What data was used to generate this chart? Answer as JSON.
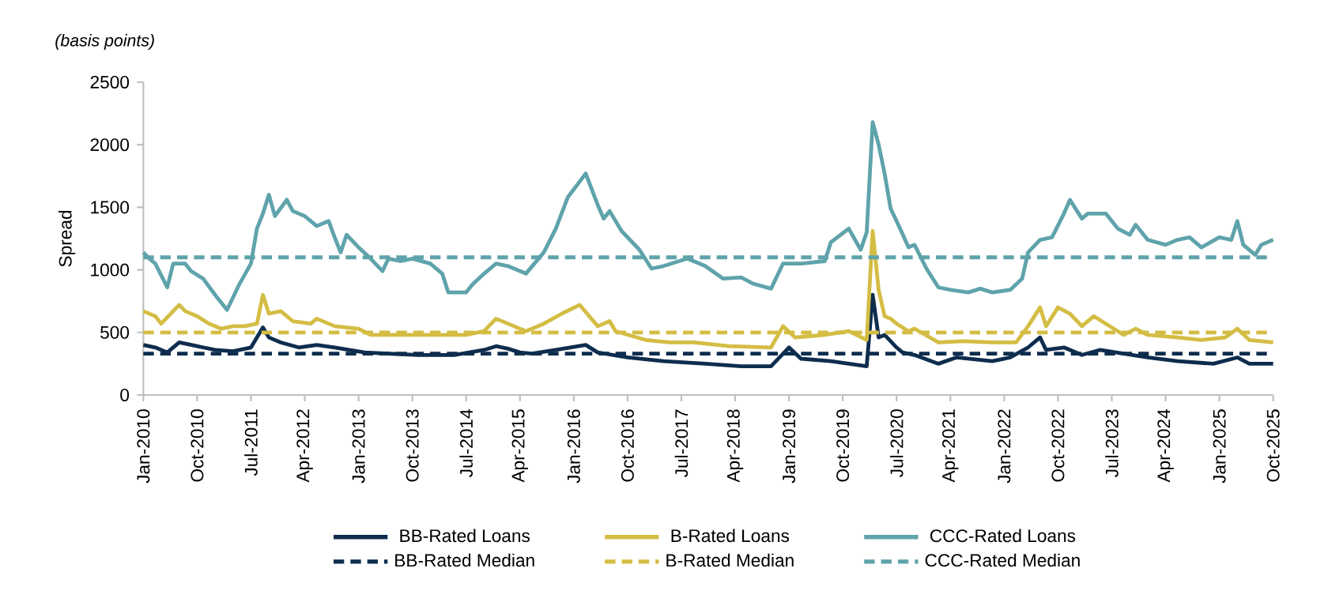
{
  "chart_data": {
    "type": "line",
    "ylabel": "Spread",
    "annotations": [
      "(basis points)"
    ],
    "xlim": [
      "2010-01",
      "2025-10"
    ],
    "xticks": [
      {
        "value": "2010-01",
        "label": "Jan-2010"
      },
      {
        "value": "2010-10",
        "label": "Oct-2010"
      },
      {
        "value": "2011-07",
        "label": "Jul-2011"
      },
      {
        "value": "2012-04",
        "label": "Apr-2012"
      },
      {
        "value": "2013-01",
        "label": "Jan-2013"
      },
      {
        "value": "2013-10",
        "label": "Oct-2013"
      },
      {
        "value": "2014-07",
        "label": "Jul-2014"
      },
      {
        "value": "2015-04",
        "label": "Apr-2015"
      },
      {
        "value": "2016-01",
        "label": "Jan-2016"
      },
      {
        "value": "2016-10",
        "label": "Oct-2016"
      },
      {
        "value": "2017-07",
        "label": "Jul-2017"
      },
      {
        "value": "2018-04",
        "label": "Apr-2018"
      },
      {
        "value": "2019-01",
        "label": "Jan-2019"
      },
      {
        "value": "2019-10",
        "label": "Oct-2019"
      },
      {
        "value": "2020-07",
        "label": "Jul-2020"
      },
      {
        "value": "2021-04",
        "label": "Apr-2021"
      },
      {
        "value": "2022-01",
        "label": "Jan-2022"
      },
      {
        "value": "2022-10",
        "label": "Oct-2022"
      },
      {
        "value": "2023-07",
        "label": "Jul-2023"
      },
      {
        "value": "2024-04",
        "label": "Apr-2024"
      },
      {
        "value": "2025-01",
        "label": "Jan-2025"
      },
      {
        "value": "2025-10",
        "label": "Oct-2025"
      }
    ],
    "ylim": [
      0,
      2500
    ],
    "yticks": [
      0,
      500,
      1000,
      1500,
      2000,
      2500
    ],
    "grid": false,
    "legend": "bottom",
    "marker": "none",
    "series": [
      {
        "name": "BB-Rated Loans",
        "color": "#0e2d4e",
        "line_style": "solid",
        "x": [
          "2010-01",
          "2010-03",
          "2010-05",
          "2010-07",
          "2010-10",
          "2011-01",
          "2011-04",
          "2011-07",
          "2011-09",
          "2011-10",
          "2011-12",
          "2012-03",
          "2012-06",
          "2012-09",
          "2013-02",
          "2013-06",
          "2013-11",
          "2014-05",
          "2014-10",
          "2014-12",
          "2015-02",
          "2015-04",
          "2015-06",
          "2015-10",
          "2016-03",
          "2016-05",
          "2016-10",
          "2017-04",
          "2017-11",
          "2018-05",
          "2018-10",
          "2019-01",
          "2019-03",
          "2019-08",
          "2020-02",
          "2020-03",
          "2020-04",
          "2020-05",
          "2020-07",
          "2020-08",
          "2020-10",
          "2021-02",
          "2021-05",
          "2021-11",
          "2022-02",
          "2022-05",
          "2022-07",
          "2022-08",
          "2022-11",
          "2023-02",
          "2023-05",
          "2023-09",
          "2024-01",
          "2024-06",
          "2024-12",
          "2025-04",
          "2025-06",
          "2025-10"
        ],
        "values": [
          400,
          380,
          340,
          420,
          390,
          360,
          350,
          380,
          540,
          460,
          420,
          380,
          400,
          380,
          340,
          330,
          320,
          320,
          360,
          390,
          370,
          340,
          330,
          360,
          400,
          340,
          300,
          270,
          250,
          230,
          230,
          380,
          290,
          270,
          230,
          800,
          460,
          480,
          380,
          340,
          320,
          250,
          300,
          270,
          300,
          380,
          460,
          360,
          380,
          320,
          360,
          330,
          300,
          270,
          250,
          300,
          250,
          250
        ]
      },
      {
        "name": "B-Rated Loans",
        "color": "#d4bd44",
        "line_style": "solid",
        "x": [
          "2010-01",
          "2010-03",
          "2010-04",
          "2010-07",
          "2010-08",
          "2010-10",
          "2010-12",
          "2011-02",
          "2011-04",
          "2011-06",
          "2011-08",
          "2011-09",
          "2011-10",
          "2011-12",
          "2012-02",
          "2012-05",
          "2012-06",
          "2012-09",
          "2013-01",
          "2013-03",
          "2013-06",
          "2013-11",
          "2014-07",
          "2014-10",
          "2014-12",
          "2015-03",
          "2015-05",
          "2015-08",
          "2015-11",
          "2016-02",
          "2016-05",
          "2016-07",
          "2016-08",
          "2017-01",
          "2017-05",
          "2017-09",
          "2018-03",
          "2018-10",
          "2018-12",
          "2019-02",
          "2019-07",
          "2019-11",
          "2020-02",
          "2020-03",
          "2020-04",
          "2020-05",
          "2020-06",
          "2020-07",
          "2020-09",
          "2020-10",
          "2021-02",
          "2021-06",
          "2021-11",
          "2022-03",
          "2022-05",
          "2022-07",
          "2022-08",
          "2022-10",
          "2022-12",
          "2023-02",
          "2023-04",
          "2023-06",
          "2023-09",
          "2023-11",
          "2024-01",
          "2024-06",
          "2024-10",
          "2025-02",
          "2025-04",
          "2025-06",
          "2025-10"
        ],
        "values": [
          670,
          630,
          570,
          720,
          670,
          630,
          570,
          530,
          550,
          550,
          570,
          800,
          650,
          670,
          590,
          570,
          610,
          550,
          530,
          480,
          480,
          480,
          480,
          510,
          610,
          550,
          510,
          570,
          650,
          720,
          550,
          590,
          510,
          440,
          420,
          420,
          390,
          380,
          550,
          460,
          480,
          510,
          440,
          1310,
          840,
          630,
          610,
          570,
          510,
          530,
          420,
          430,
          420,
          420,
          550,
          700,
          550,
          700,
          650,
          550,
          630,
          570,
          480,
          530,
          480,
          460,
          440,
          460,
          530,
          440,
          420
        ]
      },
      {
        "name": "CCC-Rated Loans",
        "color": "#5fa3ab",
        "line_style": "solid",
        "x": [
          "2010-01",
          "2010-02",
          "2010-03",
          "2010-05",
          "2010-06",
          "2010-08",
          "2010-09",
          "2010-11",
          "2011-01",
          "2011-03",
          "2011-04",
          "2011-05",
          "2011-07",
          "2011-08",
          "2011-09",
          "2011-10",
          "2011-11",
          "2012-01",
          "2012-02",
          "2012-04",
          "2012-06",
          "2012-08",
          "2012-09",
          "2012-10",
          "2012-11",
          "2013-01",
          "2013-03",
          "2013-05",
          "2013-06",
          "2013-08",
          "2013-10",
          "2014-01",
          "2014-03",
          "2014-04",
          "2014-07",
          "2014-08",
          "2014-10",
          "2014-12",
          "2015-02",
          "2015-05",
          "2015-08",
          "2015-10",
          "2015-12",
          "2016-03",
          "2016-05",
          "2016-06",
          "2016-07",
          "2016-09",
          "2016-12",
          "2017-02",
          "2017-04",
          "2017-08",
          "2017-11",
          "2018-02",
          "2018-05",
          "2018-07",
          "2018-10",
          "2018-12",
          "2019-03",
          "2019-07",
          "2019-08",
          "2019-11",
          "2020-01",
          "2020-02",
          "2020-03",
          "2020-04",
          "2020-05",
          "2020-06",
          "2020-07",
          "2020-09",
          "2020-10",
          "2020-12",
          "2021-02",
          "2021-04",
          "2021-07",
          "2021-09",
          "2021-11",
          "2022-02",
          "2022-04",
          "2022-05",
          "2022-07",
          "2022-09",
          "2022-11",
          "2022-12",
          "2023-02",
          "2023-03",
          "2023-06",
          "2023-08",
          "2023-10",
          "2023-11",
          "2024-01",
          "2024-04",
          "2024-06",
          "2024-08",
          "2024-10",
          "2025-01",
          "2025-03",
          "2025-04",
          "2025-05",
          "2025-07",
          "2025-08",
          "2025-10"
        ],
        "values": [
          1140,
          1090,
          1050,
          860,
          1050,
          1050,
          990,
          930,
          800,
          680,
          780,
          880,
          1050,
          1330,
          1450,
          1600,
          1430,
          1560,
          1470,
          1430,
          1350,
          1390,
          1260,
          1140,
          1280,
          1180,
          1090,
          990,
          1090,
          1070,
          1090,
          1050,
          970,
          820,
          820,
          880,
          970,
          1050,
          1030,
          970,
          1140,
          1330,
          1580,
          1770,
          1520,
          1410,
          1470,
          1310,
          1160,
          1010,
          1030,
          1090,
          1030,
          930,
          940,
          890,
          850,
          1050,
          1050,
          1070,
          1220,
          1330,
          1160,
          1300,
          2180,
          2000,
          1770,
          1490,
          1390,
          1180,
          1200,
          1010,
          860,
          840,
          820,
          850,
          820,
          840,
          930,
          1140,
          1240,
          1260,
          1450,
          1560,
          1410,
          1450,
          1450,
          1330,
          1280,
          1360,
          1240,
          1200,
          1240,
          1260,
          1180,
          1260,
          1240,
          1390,
          1200,
          1120,
          1200,
          1240
        ]
      },
      {
        "name": "BB-Rated Median",
        "color": "#0e2d4e",
        "line_style": "dashed",
        "x": [
          "2010-01",
          "2025-10"
        ],
        "values": [
          330,
          330
        ]
      },
      {
        "name": "B-Rated Median",
        "color": "#d4bd44",
        "line_style": "dashed",
        "x": [
          "2010-01",
          "2025-10"
        ],
        "values": [
          500,
          500
        ]
      },
      {
        "name": "CCC-Rated Median",
        "color": "#5fa3ab",
        "line_style": "dashed",
        "x": [
          "2010-01",
          "2025-10"
        ],
        "values": [
          1100,
          1100
        ]
      }
    ]
  }
}
